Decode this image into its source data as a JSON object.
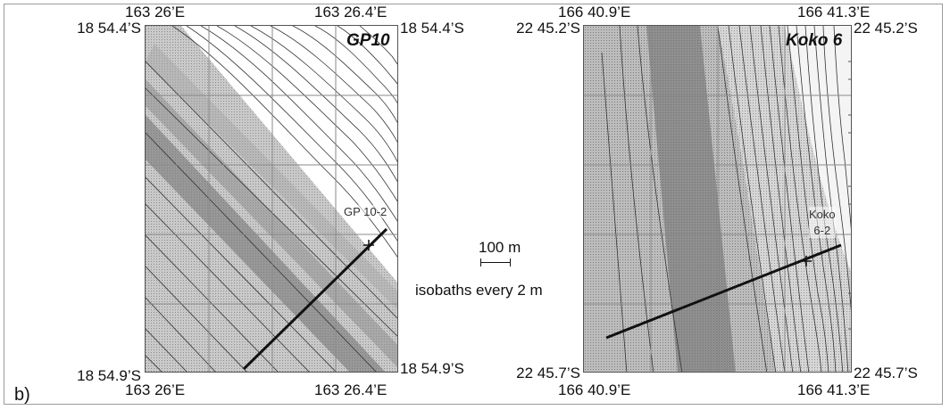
{
  "panel_label": "b)",
  "maps": [
    {
      "title": "GP10",
      "station_label": "GP 10-2",
      "lon_left": "163 26’E",
      "lon_right": "163 26.4’E",
      "lat_top": "18 54.4’S",
      "lat_bottom": "18 54.9’S"
    },
    {
      "title": "Koko 6",
      "station_label_line1": "Koko",
      "station_label_line2": "6-2",
      "lon_left": "166 40.9’E",
      "lon_right": "166 41.3’E",
      "lat_top": "22 45.2’S",
      "lat_bottom": "22 45.7’S"
    }
  ],
  "scale": {
    "label": "100 m",
    "isobaths_note": "isobaths every 2 m"
  },
  "colors": {
    "background": "#ffffff",
    "contour": "#333333",
    "profile_line": "#111111",
    "grid": "#8a8a8a"
  }
}
